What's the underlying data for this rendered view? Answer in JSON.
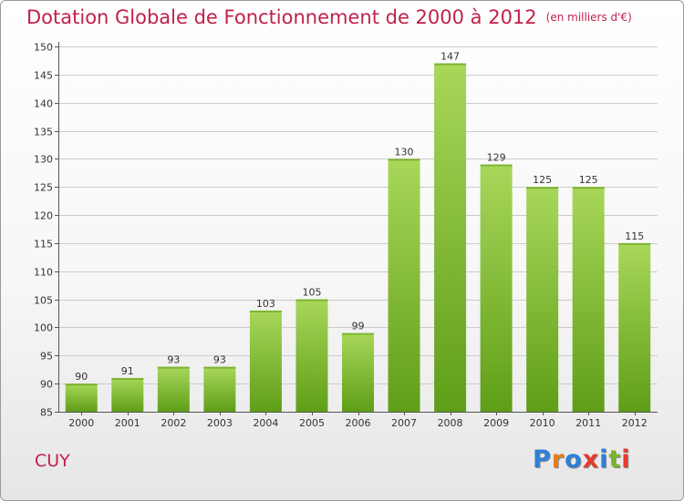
{
  "header": {
    "title": "Dotation Globale de Fonctionnement de 2000 à 2012",
    "subtitle": "(en milliers d'€)"
  },
  "commune": "CUY",
  "logo": {
    "letters": [
      "P",
      "r",
      "o",
      "x",
      "i",
      "t",
      "i"
    ],
    "colors": [
      "#2f7fd6",
      "#e77e1d",
      "#2f7fd6",
      "#e63a2e",
      "#2f7fd6",
      "#79b52b",
      "#e63a2e"
    ]
  },
  "colors": {
    "bar_top": "#a8d75a",
    "bar_bottom": "#5f9e18",
    "grid": "#cccccc",
    "axis": "#555555",
    "text": "#333333"
  },
  "chart_data": {
    "type": "bar",
    "title": "Dotation Globale de Fonctionnement de 2000 à 2012",
    "subtitle": "(en milliers d'€)",
    "categories": [
      "2000",
      "2001",
      "2002",
      "2003",
      "2004",
      "2005",
      "2006",
      "2007",
      "2008",
      "2009",
      "2010",
      "2011",
      "2012"
    ],
    "values": [
      90,
      91,
      93,
      93,
      103,
      105,
      99,
      130,
      147,
      129,
      125,
      125,
      115
    ],
    "ylim": [
      85,
      150
    ],
    "yticks": [
      85,
      90,
      95,
      100,
      105,
      110,
      115,
      120,
      125,
      130,
      135,
      140,
      145,
      150
    ],
    "grid": true,
    "data_labels": true
  }
}
